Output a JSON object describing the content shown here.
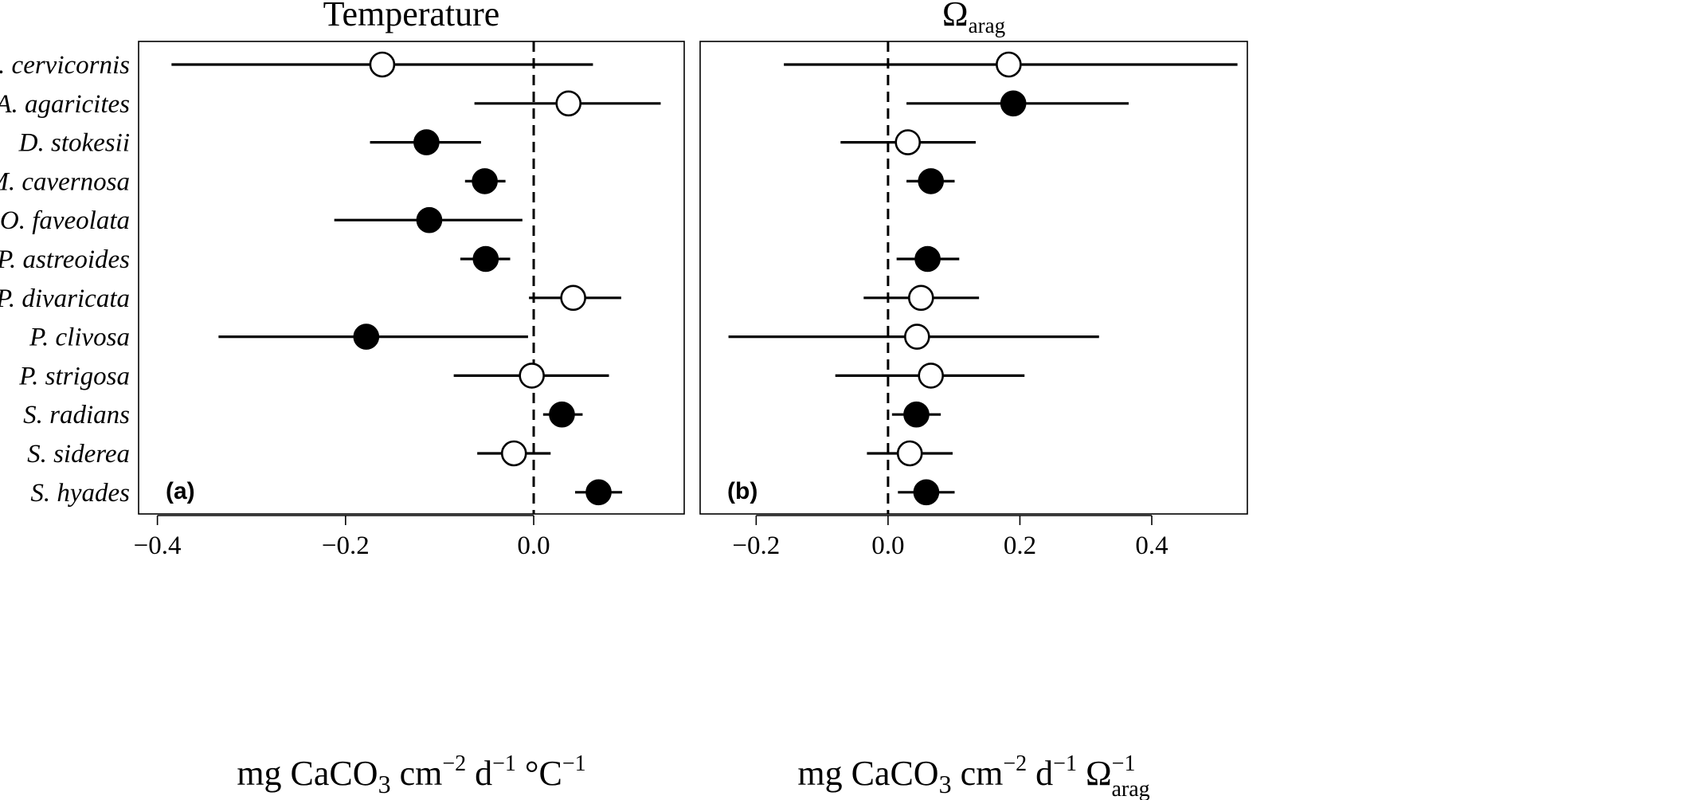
{
  "species": [
    "A. cervicornis",
    "A. agaricites",
    "D. stokesii",
    "M. cavernosa",
    "O. faveolata",
    "P. astreoides",
    "P. divaricata",
    "P. clivosa",
    "P. strigosa",
    "S. radians",
    "S. siderea",
    "S. hyades"
  ],
  "chart_data": [
    {
      "type": "scatter",
      "panel": "a",
      "letter": "(a)",
      "title": "Temperature",
      "xlabel": {
        "main": "mg CaCO",
        "sub3": "3",
        "mid": " cm",
        "sup1": "−2",
        "mid2": " d",
        "sup2": "−1",
        "tail": " °C",
        "sup3": "−1"
      },
      "xlim": [
        -0.42,
        0.16
      ],
      "xticks": [
        -0.4,
        -0.2,
        0.0
      ],
      "xtick_labels": [
        "−0.4",
        "−0.2",
        "0.0"
      ],
      "reference_line": 0.0,
      "points": [
        {
          "species": "A. cervicornis",
          "estimate": -0.161,
          "lower": -0.385,
          "upper": 0.063,
          "significant": false
        },
        {
          "species": "A. agaricites",
          "estimate": 0.037,
          "lower": -0.063,
          "upper": 0.135,
          "significant": false
        },
        {
          "species": "D. stokesii",
          "estimate": -0.114,
          "lower": -0.174,
          "upper": -0.056,
          "significant": true
        },
        {
          "species": "M. cavernosa",
          "estimate": -0.052,
          "lower": -0.073,
          "upper": -0.03,
          "significant": true
        },
        {
          "species": "O. faveolata",
          "estimate": -0.111,
          "lower": -0.212,
          "upper": -0.012,
          "significant": true
        },
        {
          "species": "P. astreoides",
          "estimate": -0.051,
          "lower": -0.078,
          "upper": -0.025,
          "significant": true
        },
        {
          "species": "P. divaricata",
          "estimate": 0.042,
          "lower": -0.005,
          "upper": 0.093,
          "significant": false
        },
        {
          "species": "P. clivosa",
          "estimate": -0.178,
          "lower": -0.335,
          "upper": -0.006,
          "significant": true
        },
        {
          "species": "P. strigosa",
          "estimate": -0.002,
          "lower": -0.085,
          "upper": 0.08,
          "significant": false
        },
        {
          "species": "S. radians",
          "estimate": 0.03,
          "lower": 0.01,
          "upper": 0.052,
          "significant": true
        },
        {
          "species": "S. siderea",
          "estimate": -0.021,
          "lower": -0.06,
          "upper": 0.018,
          "significant": false
        },
        {
          "species": "S. hyades",
          "estimate": 0.069,
          "lower": 0.044,
          "upper": 0.094,
          "significant": true
        }
      ]
    },
    {
      "type": "scatter",
      "panel": "b",
      "letter": "(b)",
      "title": "Ω",
      "title_sub": "arag",
      "xlabel": {
        "main": "mg CaCO",
        "sub3": "3",
        "mid": " cm",
        "sup1": "−2",
        "mid2": " d",
        "sup2": "−1",
        "tail": " Ω",
        "sup3": "−1",
        "sub4": "arag"
      },
      "xlim": [
        -0.285,
        0.545
      ],
      "xticks": [
        -0.2,
        0.0,
        0.2,
        0.4
      ],
      "xtick_labels": [
        "−0.2",
        "0.0",
        "0.2",
        "0.4"
      ],
      "reference_line": 0.0,
      "points": [
        {
          "species": "A. cervicornis",
          "estimate": 0.183,
          "lower": -0.158,
          "upper": 0.53,
          "significant": false
        },
        {
          "species": "A. agaricites",
          "estimate": 0.19,
          "lower": 0.028,
          "upper": 0.365,
          "significant": true
        },
        {
          "species": "D. stokesii",
          "estimate": 0.03,
          "lower": -0.072,
          "upper": 0.133,
          "significant": false
        },
        {
          "species": "M. cavernosa",
          "estimate": 0.065,
          "lower": 0.028,
          "upper": 0.101,
          "significant": true
        },
        {
          "species": "O. faveolata",
          "estimate": null,
          "lower": null,
          "upper": null,
          "significant": null
        },
        {
          "species": "P. astreoides",
          "estimate": 0.06,
          "lower": 0.013,
          "upper": 0.108,
          "significant": true
        },
        {
          "species": "P. divaricata",
          "estimate": 0.05,
          "lower": -0.037,
          "upper": 0.138,
          "significant": false
        },
        {
          "species": "P. clivosa",
          "estimate": 0.044,
          "lower": -0.242,
          "upper": 0.32,
          "significant": false
        },
        {
          "species": "P. strigosa",
          "estimate": 0.065,
          "lower": -0.08,
          "upper": 0.207,
          "significant": false
        },
        {
          "species": "S. radians",
          "estimate": 0.043,
          "lower": 0.006,
          "upper": 0.08,
          "significant": true
        },
        {
          "species": "S. siderea",
          "estimate": 0.033,
          "lower": -0.032,
          "upper": 0.098,
          "significant": false
        },
        {
          "species": "S. hyades",
          "estimate": 0.058,
          "lower": 0.015,
          "upper": 0.101,
          "significant": true
        }
      ]
    }
  ]
}
